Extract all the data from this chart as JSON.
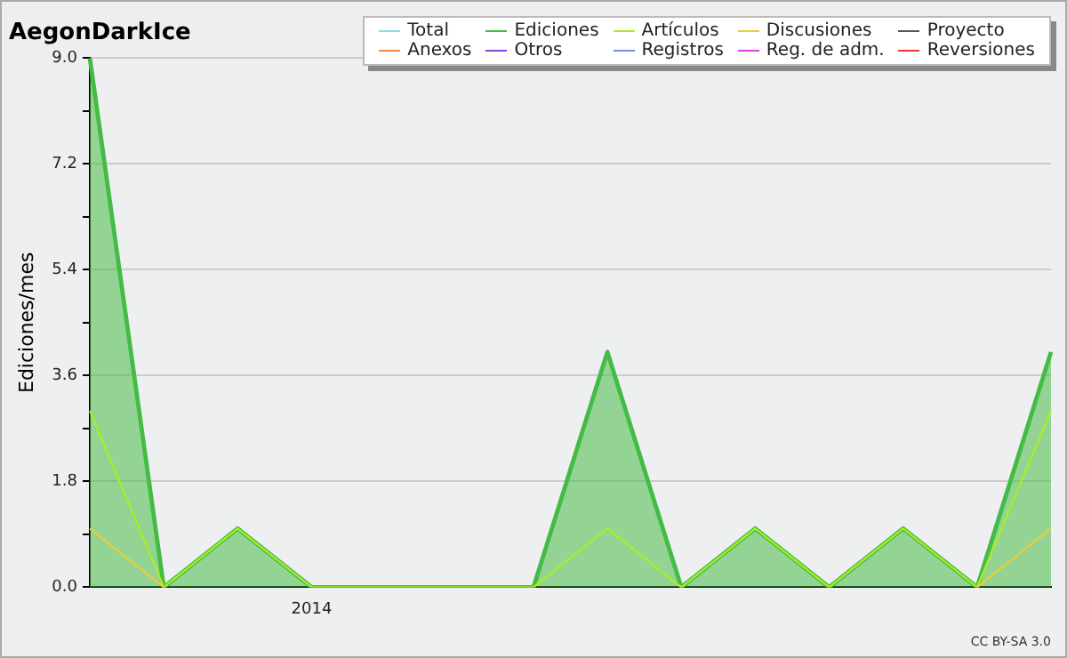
{
  "chart_data": {
    "type": "line",
    "title": "AegonDarkIce",
    "ylabel": "Ediciones/mes",
    "categories": [
      null,
      null,
      null,
      "2014",
      null,
      null,
      null,
      null,
      null,
      null,
      null,
      null,
      null,
      null
    ],
    "series": [
      {
        "name": "Total",
        "color": "#88dddd",
        "values": [
          null,
          null,
          null,
          null,
          null,
          null,
          null,
          null,
          null,
          null,
          null,
          null,
          null,
          null
        ]
      },
      {
        "name": "Ediciones",
        "type": "area",
        "color": "#44bb44",
        "values": [
          9,
          0,
          1,
          0,
          0,
          0,
          0,
          4,
          0,
          1,
          0,
          1,
          0,
          4
        ]
      },
      {
        "name": "Artículos",
        "color": "#aaee22",
        "values": [
          3,
          0,
          1,
          0,
          0,
          0,
          0,
          1,
          0,
          1,
          0,
          1,
          0,
          3
        ]
      },
      {
        "name": "Discusiones",
        "color": "#eecc33",
        "values": [
          1,
          0,
          null,
          null,
          null,
          null,
          null,
          null,
          null,
          null,
          null,
          null,
          0,
          1
        ]
      },
      {
        "name": "Proyecto",
        "color": "#555555",
        "values": [
          null,
          null,
          null,
          null,
          null,
          null,
          null,
          null,
          null,
          null,
          null,
          null,
          null,
          null
        ]
      },
      {
        "name": "Anexos",
        "color": "#ee8844",
        "values": [
          null,
          null,
          null,
          null,
          null,
          null,
          null,
          null,
          null,
          null,
          null,
          null,
          null,
          null
        ]
      },
      {
        "name": "Otros",
        "color": "#8844dd",
        "values": [
          null,
          null,
          null,
          null,
          null,
          null,
          null,
          null,
          null,
          null,
          null,
          null,
          null,
          null
        ]
      },
      {
        "name": "Registros",
        "color": "#7788ee",
        "values": [
          null,
          null,
          null,
          null,
          null,
          null,
          null,
          null,
          null,
          null,
          null,
          null,
          null,
          null
        ]
      },
      {
        "name": "Reg. de adm.",
        "color": "#dd44dd",
        "values": [
          null,
          null,
          null,
          null,
          null,
          null,
          null,
          null,
          null,
          null,
          null,
          null,
          null,
          null
        ]
      },
      {
        "name": "Reversiones",
        "color": "#ee3333",
        "values": [
          null,
          null,
          null,
          null,
          null,
          null,
          null,
          null,
          null,
          null,
          null,
          null,
          null,
          null
        ]
      }
    ],
    "ylim": [
      0,
      9
    ],
    "yticks": [
      {
        "value": 0,
        "label": "0.0"
      },
      {
        "value": 0.9,
        "label": null
      },
      1.8,
      {
        "value": 2.7,
        "label": null
      },
      3.6,
      {
        "value": 4.5,
        "label": null
      },
      5.4,
      {
        "value": 6.3,
        "label": null
      },
      7.2,
      {
        "value": 8.1,
        "label": null
      },
      {
        "value": 9,
        "label": "9.0"
      }
    ],
    "grid": "y",
    "legend": "top right",
    "marker": "none",
    "line_style": "solid",
    "annotations": [
      "CC BY-SA 3.0"
    ]
  }
}
